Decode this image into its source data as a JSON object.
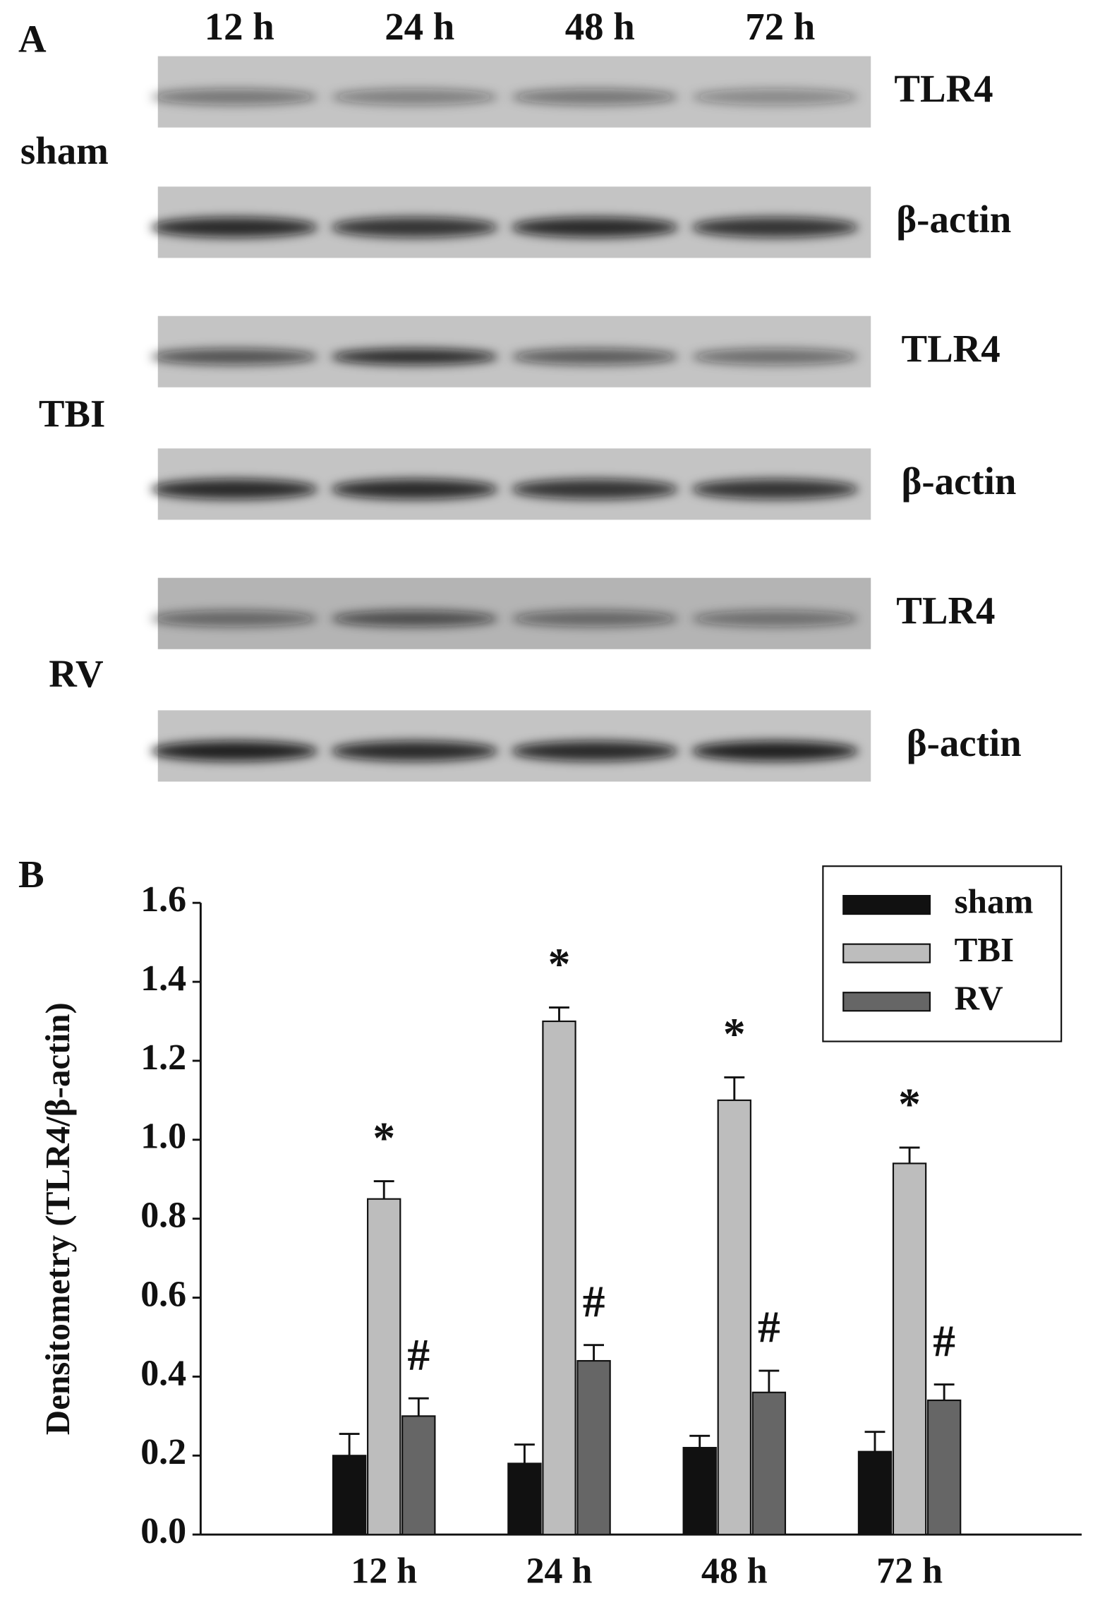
{
  "panel_a": {
    "label": "A",
    "time_points": [
      "12 h",
      "24 h",
      "48 h",
      "72 h"
    ],
    "groups": [
      {
        "name": "sham",
        "bands": [
          "TLR4",
          "β-actin"
        ]
      },
      {
        "name": "TBI",
        "bands": [
          "TLR4",
          "β-actin"
        ]
      },
      {
        "name": "RV",
        "bands": [
          "TLR4",
          "β-actin"
        ]
      }
    ]
  },
  "chart_data": {
    "type": "bar",
    "panel_label": "B",
    "y_label": "Densitometry (TLR4/β-actin)",
    "categories": [
      "12 h",
      "24 h",
      "48 h",
      "72 h"
    ],
    "series": [
      {
        "name": "sham",
        "color": "#111111",
        "values": [
          0.2,
          0.18,
          0.22,
          0.21
        ],
        "errors": [
          0.055,
          0.048,
          0.03,
          0.05
        ]
      },
      {
        "name": "TBI",
        "color": "#bdbdbd",
        "values": [
          0.85,
          1.3,
          1.1,
          0.94
        ],
        "errors": [
          0.045,
          0.035,
          0.058,
          0.04
        ],
        "annotations": [
          "*",
          "*",
          "*",
          "*"
        ]
      },
      {
        "name": "RV",
        "color": "#666666",
        "values": [
          0.3,
          0.44,
          0.36,
          0.34
        ],
        "errors": [
          0.045,
          0.04,
          0.055,
          0.04
        ],
        "annotations": [
          "#",
          "#",
          "#",
          "#"
        ]
      }
    ],
    "ylim": [
      0,
      1.6
    ],
    "yticks": [
      {
        "value": 0,
        "label": "0.0"
      },
      0.2,
      0.4,
      0.6,
      0.8,
      {
        "value": 1,
        "label": "1.0"
      },
      1.2,
      1.4,
      1.6
    ],
    "grid": false,
    "legend": "upper right"
  }
}
